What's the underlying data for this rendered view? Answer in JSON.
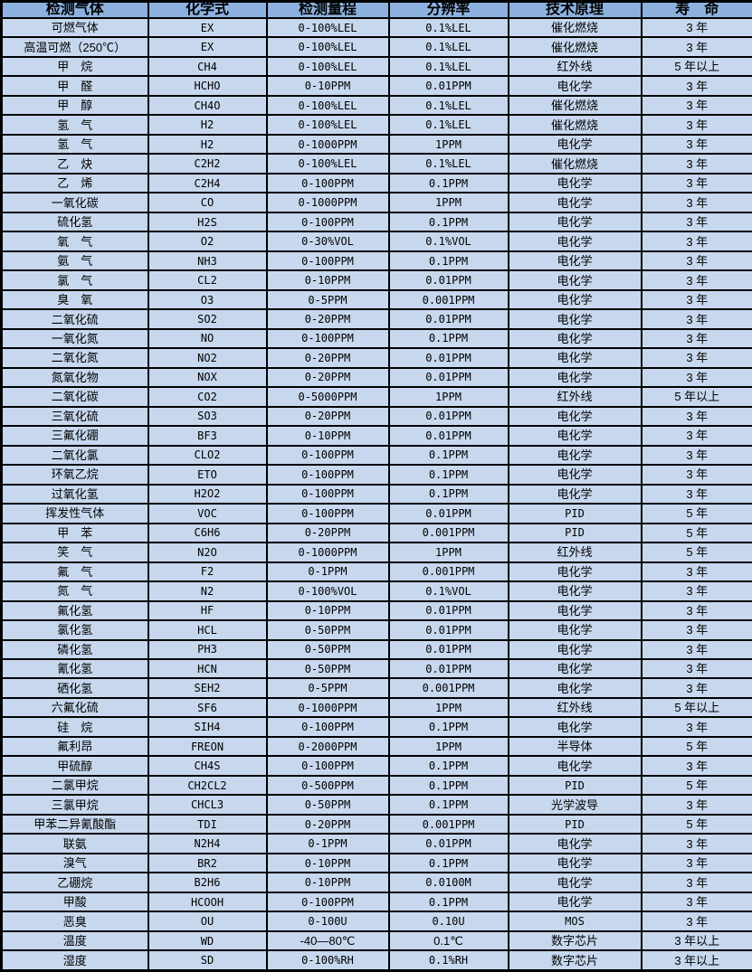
{
  "colors": {
    "header_bg": "#8DB1DF",
    "row_bg": "#C7D8EE",
    "border_color": "#000000"
  },
  "table": {
    "columns": [
      {
        "key": "gas",
        "label": "检测气体"
      },
      {
        "key": "formula",
        "label": "化学式"
      },
      {
        "key": "range",
        "label": "检测量程"
      },
      {
        "key": "resolution",
        "label": "分辨率"
      },
      {
        "key": "principle",
        "label": "技术原理"
      },
      {
        "key": "life",
        "label": "寿　命"
      }
    ],
    "rows": [
      {
        "gas": "可燃气体",
        "formula": "EX",
        "range": "0-100%LEL",
        "resolution": "0.1%LEL",
        "principle": "催化燃烧",
        "life": "3 年"
      },
      {
        "gas": "高温可燃（250℃）",
        "formula": "EX",
        "range": "0-100%LEL",
        "resolution": "0.1%LEL",
        "principle": "催化燃烧",
        "life": "3 年"
      },
      {
        "gas": "甲　烷",
        "formula": "CH4",
        "range": "0-100%LEL",
        "resolution": "0.1%LEL",
        "principle": "红外线",
        "life": "5 年以上"
      },
      {
        "gas": "甲　醛",
        "formula": "HCHO",
        "range": "0-10PPM",
        "resolution": "0.01PPM",
        "principle": "电化学",
        "life": "3 年"
      },
      {
        "gas": "甲　醇",
        "formula": "CH4O",
        "range": "0-100%LEL",
        "resolution": "0.1%LEL",
        "principle": "催化燃烧",
        "life": "3 年"
      },
      {
        "gas": "氢　气",
        "formula": "H2",
        "range": "0-100%LEL",
        "resolution": "0.1%LEL",
        "principle": "催化燃烧",
        "life": "3 年"
      },
      {
        "gas": "氢　气",
        "formula": "H2",
        "range": "0-1000PPM",
        "resolution": "1PPM",
        "principle": "电化学",
        "life": "3 年"
      },
      {
        "gas": "乙　炔",
        "formula": "C2H2",
        "range": "0-100%LEL",
        "resolution": "0.1%LEL",
        "principle": "催化燃烧",
        "life": "3 年"
      },
      {
        "gas": "乙　烯",
        "formula": "C2H4",
        "range": "0-100PPM",
        "resolution": "0.1PPM",
        "principle": "电化学",
        "life": "3 年"
      },
      {
        "gas": "一氧化碳",
        "formula": "CO",
        "range": "0-1000PPM",
        "resolution": "1PPM",
        "principle": "电化学",
        "life": "3 年"
      },
      {
        "gas": "硫化氢",
        "formula": "H2S",
        "range": "0-100PPM",
        "resolution": "0.1PPM",
        "principle": "电化学",
        "life": "3 年"
      },
      {
        "gas": "氧　气",
        "formula": "O2",
        "range": "0-30%VOL",
        "resolution": "0.1%VOL",
        "principle": "电化学",
        "life": "3 年"
      },
      {
        "gas": "氨　气",
        "formula": "NH3",
        "range": "0-100PPM",
        "resolution": "0.1PPM",
        "principle": "电化学",
        "life": "3 年"
      },
      {
        "gas": "氯　气",
        "formula": "CL2",
        "range": "0-10PPM",
        "resolution": "0.01PPM",
        "principle": "电化学",
        "life": "3 年"
      },
      {
        "gas": "臭　氧",
        "formula": "O3",
        "range": "0-5PPM",
        "resolution": "0.001PPM",
        "principle": "电化学",
        "life": "3 年"
      },
      {
        "gas": "二氧化硫",
        "formula": "SO2",
        "range": "0-20PPM",
        "resolution": "0.01PPM",
        "principle": "电化学",
        "life": "3 年"
      },
      {
        "gas": "一氧化氮",
        "formula": "NO",
        "range": "0-100PPM",
        "resolution": "0.1PPM",
        "principle": "电化学",
        "life": "3 年"
      },
      {
        "gas": "二氧化氮",
        "formula": "NO2",
        "range": "0-20PPM",
        "resolution": "0.01PPM",
        "principle": "电化学",
        "life": "3 年"
      },
      {
        "gas": "氮氧化物",
        "formula": "NOX",
        "range": "0-20PPM",
        "resolution": "0.01PPM",
        "principle": "电化学",
        "life": "3 年"
      },
      {
        "gas": "二氧化碳",
        "formula": "CO2",
        "range": "0-5000PPM",
        "resolution": "1PPM",
        "principle": "红外线",
        "life": "5 年以上"
      },
      {
        "gas": "三氧化硫",
        "formula": "SO3",
        "range": "0-20PPM",
        "resolution": "0.01PPM",
        "principle": "电化学",
        "life": "3 年"
      },
      {
        "gas": "三氟化硼",
        "formula": "BF3",
        "range": "0-10PPM",
        "resolution": "0.01PPM",
        "principle": "电化学",
        "life": "3 年"
      },
      {
        "gas": "二氧化氯",
        "formula": "CLO2",
        "range": "0-100PPM",
        "resolution": "0.1PPM",
        "principle": "电化学",
        "life": "3 年"
      },
      {
        "gas": "环氧乙烷",
        "formula": "ETO",
        "range": "0-100PPM",
        "resolution": "0.1PPM",
        "principle": "电化学",
        "life": "3 年"
      },
      {
        "gas": "过氧化氢",
        "formula": "H2O2",
        "range": "0-100PPM",
        "resolution": "0.1PPM",
        "principle": "电化学",
        "life": "3 年"
      },
      {
        "gas": "挥发性气体",
        "formula": "VOC",
        "range": "0-100PPM",
        "resolution": "0.01PPM",
        "principle": "PID",
        "life": "5 年"
      },
      {
        "gas": "甲　苯",
        "formula": "C6H6",
        "range": "0-20PPM",
        "resolution": "0.001PPM",
        "principle": "PID",
        "life": "5 年"
      },
      {
        "gas": "笑　气",
        "formula": "N2O",
        "range": "0-1000PPM",
        "resolution": "1PPM",
        "principle": "红外线",
        "life": "5 年"
      },
      {
        "gas": "氟　气",
        "formula": "F2",
        "range": "0-1PPM",
        "resolution": "0.001PPM",
        "principle": "电化学",
        "life": "3 年"
      },
      {
        "gas": "氮　气",
        "formula": "N2",
        "range": "0-100%VOL",
        "resolution": "0.1%VOL",
        "principle": "电化学",
        "life": "3 年"
      },
      {
        "gas": "氟化氢",
        "formula": "HF",
        "range": "0-10PPM",
        "resolution": "0.01PPM",
        "principle": "电化学",
        "life": "3 年"
      },
      {
        "gas": "氯化氢",
        "formula": "HCL",
        "range": "0-50PPM",
        "resolution": "0.01PPM",
        "principle": "电化学",
        "life": "3 年"
      },
      {
        "gas": "磷化氢",
        "formula": "PH3",
        "range": "0-50PPM",
        "resolution": "0.01PPM",
        "principle": "电化学",
        "life": "3 年"
      },
      {
        "gas": "氰化氢",
        "formula": "HCN",
        "range": "0-50PPM",
        "resolution": "0.01PPM",
        "principle": "电化学",
        "life": "3 年"
      },
      {
        "gas": "硒化氢",
        "formula": "SEH2",
        "range": "0-5PPM",
        "resolution": "0.001PPM",
        "principle": "电化学",
        "life": "3 年"
      },
      {
        "gas": "六氟化硫",
        "formula": "SF6",
        "range": "0-1000PPM",
        "resolution": "1PPM",
        "principle": "红外线",
        "life": "5 年以上"
      },
      {
        "gas": "硅　烷",
        "formula": "SIH4",
        "range": "0-100PPM",
        "resolution": "0.1PPM",
        "principle": "电化学",
        "life": "3 年"
      },
      {
        "gas": "氟利昂",
        "formula": "FREON",
        "range": "0-2000PPM",
        "resolution": "1PPM",
        "principle": "半导体",
        "life": "5 年"
      },
      {
        "gas": "甲硫醇",
        "formula": "CH4S",
        "range": "0-100PPM",
        "resolution": "0.1PPM",
        "principle": "电化学",
        "life": "3 年"
      },
      {
        "gas": "二氯甲烷",
        "formula": "CH2CL2",
        "range": "0-500PPM",
        "resolution": "0.1PPM",
        "principle": "PID",
        "life": "5 年"
      },
      {
        "gas": "三氯甲烷",
        "formula": "CHCL3",
        "range": "0-50PPM",
        "resolution": "0.1PPM",
        "principle": "光学波导",
        "life": "3 年"
      },
      {
        "gas": "甲苯二异氰酸酯",
        "formula": "TDI",
        "range": "0-20PPM",
        "resolution": "0.001PPM",
        "principle": "PID",
        "life": "5 年"
      },
      {
        "gas": "联氨",
        "formula": "N2H4",
        "range": "0-1PPM",
        "resolution": "0.01PPM",
        "principle": "电化学",
        "life": "3 年"
      },
      {
        "gas": "溴气",
        "formula": "BR2",
        "range": "0-10PPM",
        "resolution": "0.1PPM",
        "principle": "电化学",
        "life": "3 年"
      },
      {
        "gas": "乙硼烷",
        "formula": "B2H6",
        "range": "0-10PPM",
        "resolution": "0.0100M",
        "principle": "电化学",
        "life": "3 年"
      },
      {
        "gas": "甲酸",
        "formula": "HCOOH",
        "range": "0-100PPM",
        "resolution": "0.1PPM",
        "principle": "电化学",
        "life": "3 年"
      },
      {
        "gas": "恶臭",
        "formula": "OU",
        "range": "0-100U",
        "resolution": "0.10U",
        "principle": "MOS",
        "life": "3 年"
      },
      {
        "gas": "温度",
        "formula": "WD",
        "range": "-40—80℃",
        "resolution": "0.1℃",
        "principle": "数字芯片",
        "life": "3 年以上"
      },
      {
        "gas": "湿度",
        "formula": "SD",
        "range": "0-100%RH",
        "resolution": "0.1%RH",
        "principle": "数字芯片",
        "life": "3 年以上"
      }
    ]
  }
}
